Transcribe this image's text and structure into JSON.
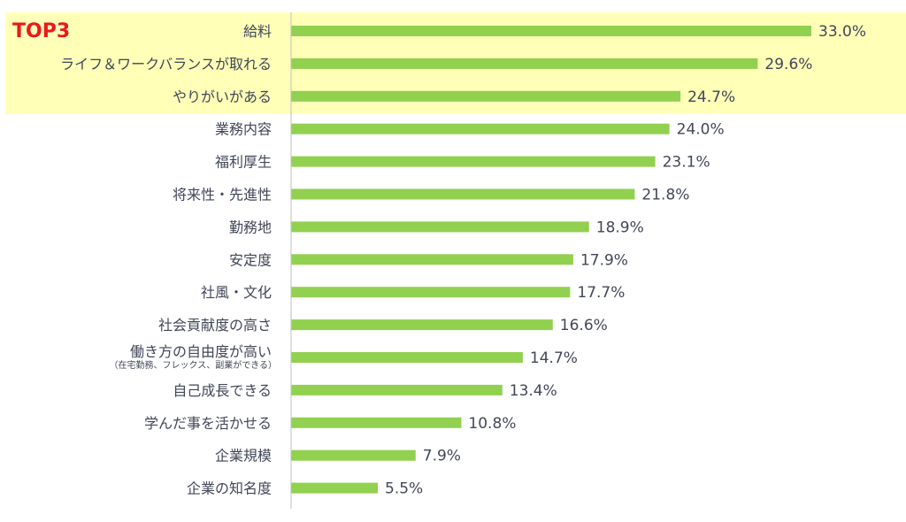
{
  "highlight": {
    "label": "TOP3",
    "count": 3,
    "color": "#ffffb8",
    "label_color": "#e8191e"
  },
  "colors": {
    "bar": "#92d050",
    "axis": "#bfbfbf",
    "text": "#404757"
  },
  "chart_data": {
    "type": "bar",
    "orientation": "horizontal",
    "categories": [
      "給料",
      "ライフ＆ワークバランスが取れる",
      "やりがいがある",
      "業務内容",
      "福利厚生",
      "将来性・先進性",
      "勤務地",
      "安定度",
      "社風・文化",
      "社会貢献度の高さ",
      "働き方の自由度が高い",
      "自己成長できる",
      "学んだ事を活かせる",
      "企業規模",
      "企業の知名度"
    ],
    "category_notes": [
      "",
      "",
      "",
      "",
      "",
      "",
      "",
      "",
      "",
      "",
      "（在宅勤務、フレックス、副業ができる）",
      "",
      "",
      "",
      ""
    ],
    "values": [
      33.0,
      29.6,
      24.7,
      24.0,
      23.1,
      21.8,
      18.9,
      17.9,
      17.7,
      16.6,
      14.7,
      13.4,
      10.8,
      7.9,
      5.5
    ],
    "value_labels": [
      "33.0%",
      "29.6%",
      "24.7%",
      "24.0%",
      "23.1%",
      "21.8%",
      "18.9%",
      "17.9%",
      "17.7%",
      "16.6%",
      "14.7%",
      "13.4%",
      "10.8%",
      "7.9%",
      "5.5%"
    ],
    "xlim": [
      0,
      37
    ],
    "grid": false,
    "legend": "none"
  }
}
